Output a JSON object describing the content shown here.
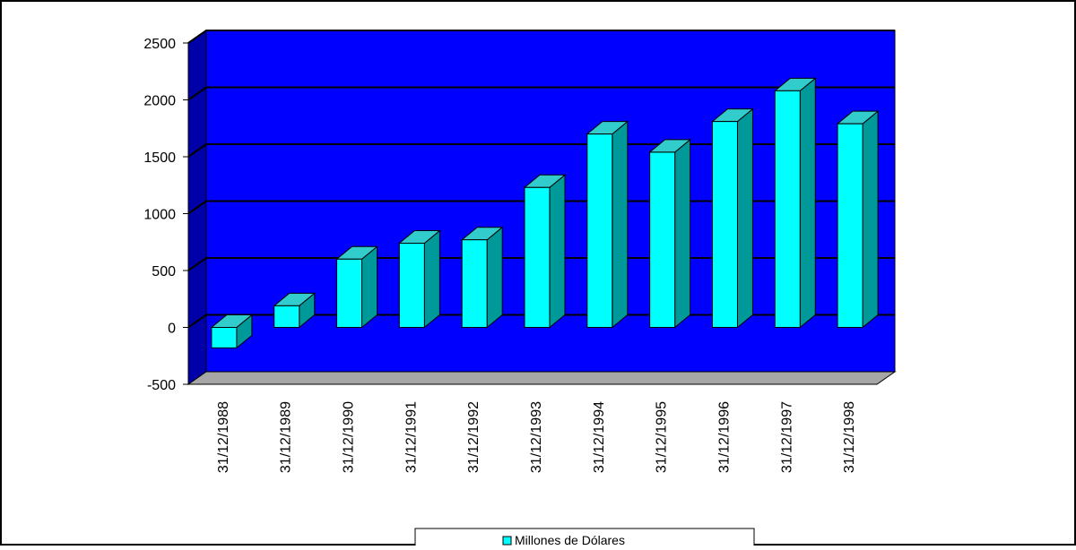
{
  "chart_data": {
    "type": "bar",
    "title": "",
    "xlabel": "",
    "ylabel": "",
    "categories": [
      "31/12/1988",
      "31/12/1989",
      "31/12/1990",
      "31/12/1991",
      "31/12/1992",
      "31/12/1993",
      "31/12/1994",
      "31/12/1995",
      "31/12/1996",
      "31/12/1997",
      "31/12/1998"
    ],
    "series": [
      {
        "name": "Millones de Dólares",
        "values": [
          -180,
          190,
          600,
          740,
          770,
          1230,
          1700,
          1540,
          1810,
          2080,
          1790
        ]
      }
    ],
    "ylim": [
      -500,
      2500
    ],
    "yticks": [
      "-500",
      "0",
      "500",
      "1000",
      "1500",
      "2000",
      "2500"
    ],
    "grid": true,
    "legend_position": "bottom",
    "colors": {
      "wall": "#0000ff",
      "side_wall": "#0000a8",
      "floor": "#a6a6a6",
      "bar_front": "#00ffff",
      "bar_top": "#33cccc",
      "bar_side": "#009999"
    }
  }
}
